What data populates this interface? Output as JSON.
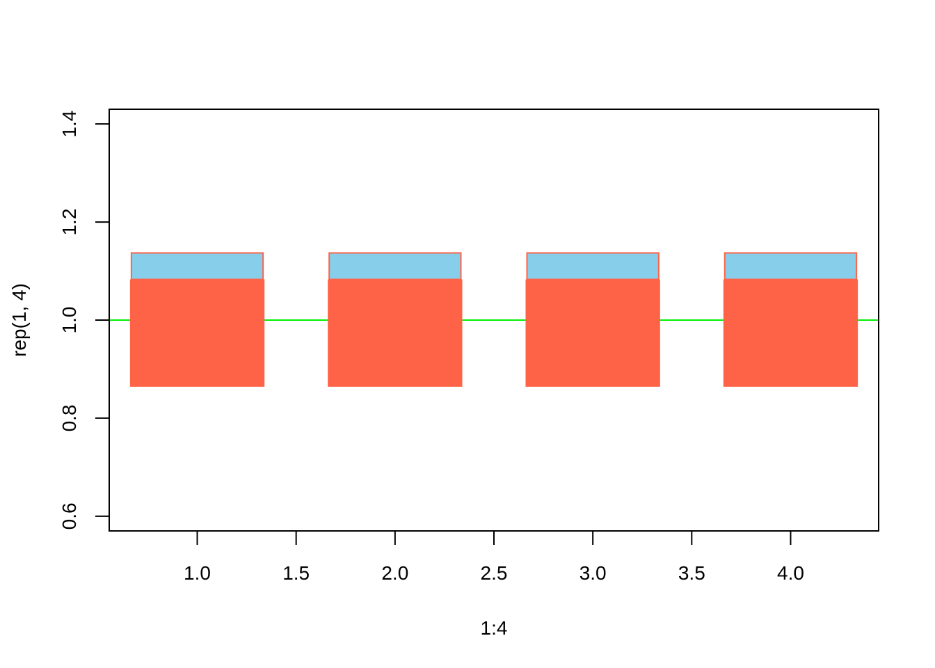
{
  "chart_data": {
    "type": "bar",
    "xlabel": "1:4",
    "ylabel": "rep(1, 4)",
    "xlim": [
      0.555,
      4.445
    ],
    "ylim": [
      0.57,
      1.43
    ],
    "x_ticks": [
      "1.0",
      "1.5",
      "2.0",
      "2.5",
      "3.0",
      "3.5",
      "4.0"
    ],
    "x_tick_values": [
      1.0,
      1.5,
      2.0,
      2.5,
      3.0,
      3.5,
      4.0
    ],
    "y_ticks": [
      "0.6",
      "0.8",
      "1.0",
      "1.2",
      "1.4"
    ],
    "y_tick_values": [
      0.6,
      0.8,
      1.0,
      1.2,
      1.4
    ],
    "x": [
      1,
      2,
      3,
      4
    ],
    "bar_halfwidth": 0.34,
    "boxes": [
      {
        "x": 1,
        "ymin": 0.864,
        "ymid": 1.083,
        "ymax": 1.137
      },
      {
        "x": 2,
        "ymin": 0.864,
        "ymid": 1.083,
        "ymax": 1.137
      },
      {
        "x": 3,
        "ymin": 0.864,
        "ymid": 1.083,
        "ymax": 1.137
      },
      {
        "x": 4,
        "ymin": 0.864,
        "ymid": 1.083,
        "ymax": 1.137
      }
    ],
    "reference_line_y": 1.0,
    "grid": false,
    "colors": {
      "lower_fill": "#FF6347",
      "upper_fill": "#87CEEB",
      "reference_line": "#00EE00",
      "axes": "#000000"
    }
  }
}
